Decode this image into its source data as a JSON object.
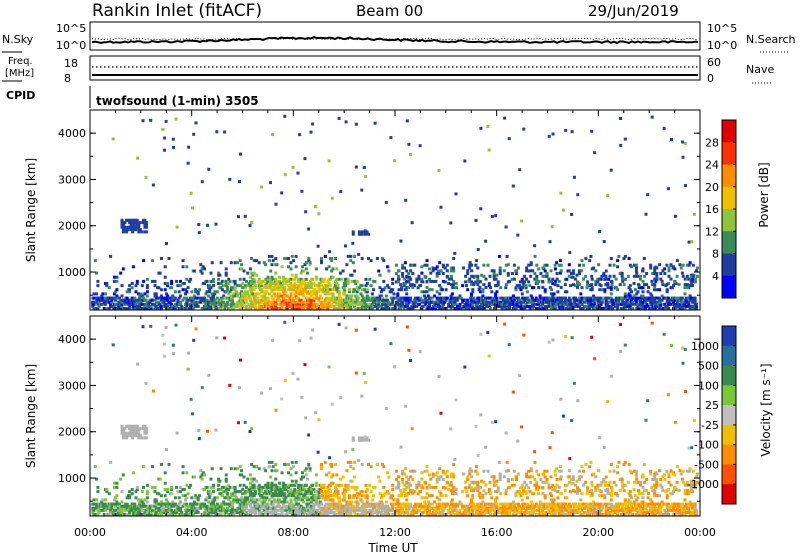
{
  "header": {
    "station": "Rankin Inlet (fitACF)",
    "beam": "Beam 00",
    "date": "29/Jun/2019"
  },
  "noise_panel": {
    "left_label": "N.Sky",
    "right_label": "N.Search",
    "left_ticks": [
      "10^5",
      "10^0"
    ],
    "right_ticks": [
      "10^5",
      "10^0"
    ]
  },
  "freq_panel": {
    "left_label_line1": "Freq.",
    "left_label_line2": "[MHz]",
    "left_ticks": [
      "18",
      "8"
    ],
    "right_label": "Nave",
    "right_ticks": [
      "60",
      "0"
    ]
  },
  "cpid": {
    "label": "CPID",
    "program": "twofsound (1-min) 3505"
  },
  "chart_data": [
    {
      "type": "heatmap",
      "quantity": "Power",
      "ylabel": "Slant Range [km]",
      "xlabel": "",
      "y_ticks": [
        "1000",
        "2000",
        "3000",
        "4000"
      ],
      "ylim": [
        180,
        4500
      ],
      "x_ticks": [
        "00:00",
        "04:00",
        "08:00",
        "12:00",
        "16:00",
        "20:00",
        "00:00"
      ],
      "xlim_hours": [
        0,
        24
      ],
      "colorbar": {
        "label": "Power [dB]",
        "ticks": [
          "4",
          "8",
          "12",
          "16",
          "20",
          "24",
          "28"
        ],
        "colors": [
          "#0000ff",
          "#1f3fa0",
          "#3a8a5a",
          "#8fc43c",
          "#f0c000",
          "#ff8c00",
          "#ff3000",
          "#e00000"
        ]
      }
    },
    {
      "type": "heatmap",
      "quantity": "Velocity",
      "ylabel": "Slant Range [km]",
      "xlabel": "Time UT",
      "y_ticks": [
        "1000",
        "2000",
        "3000",
        "4000"
      ],
      "ylim": [
        180,
        4500
      ],
      "x_ticks": [
        "00:00",
        "04:00",
        "08:00",
        "12:00",
        "16:00",
        "20:00",
        "00:00"
      ],
      "xlim_hours": [
        0,
        24
      ],
      "colorbar": {
        "label": "Velocity [m s⁻¹]",
        "ticks": [
          "1000",
          "500",
          "100",
          "25",
          "-25",
          "-100",
          "-500",
          "-1000"
        ],
        "colors": [
          "#1b3fb0",
          "#2a6e9a",
          "#3a8a50",
          "#7ac83a",
          "#c0c0c0",
          "#f0c000",
          "#ff8c00",
          "#ff5000",
          "#e00000"
        ]
      },
      "ground_scatter_color": "#b0b0b0"
    }
  ],
  "colors": {
    "frame": "#000000",
    "ground_scatter": "#b0b0b0"
  }
}
